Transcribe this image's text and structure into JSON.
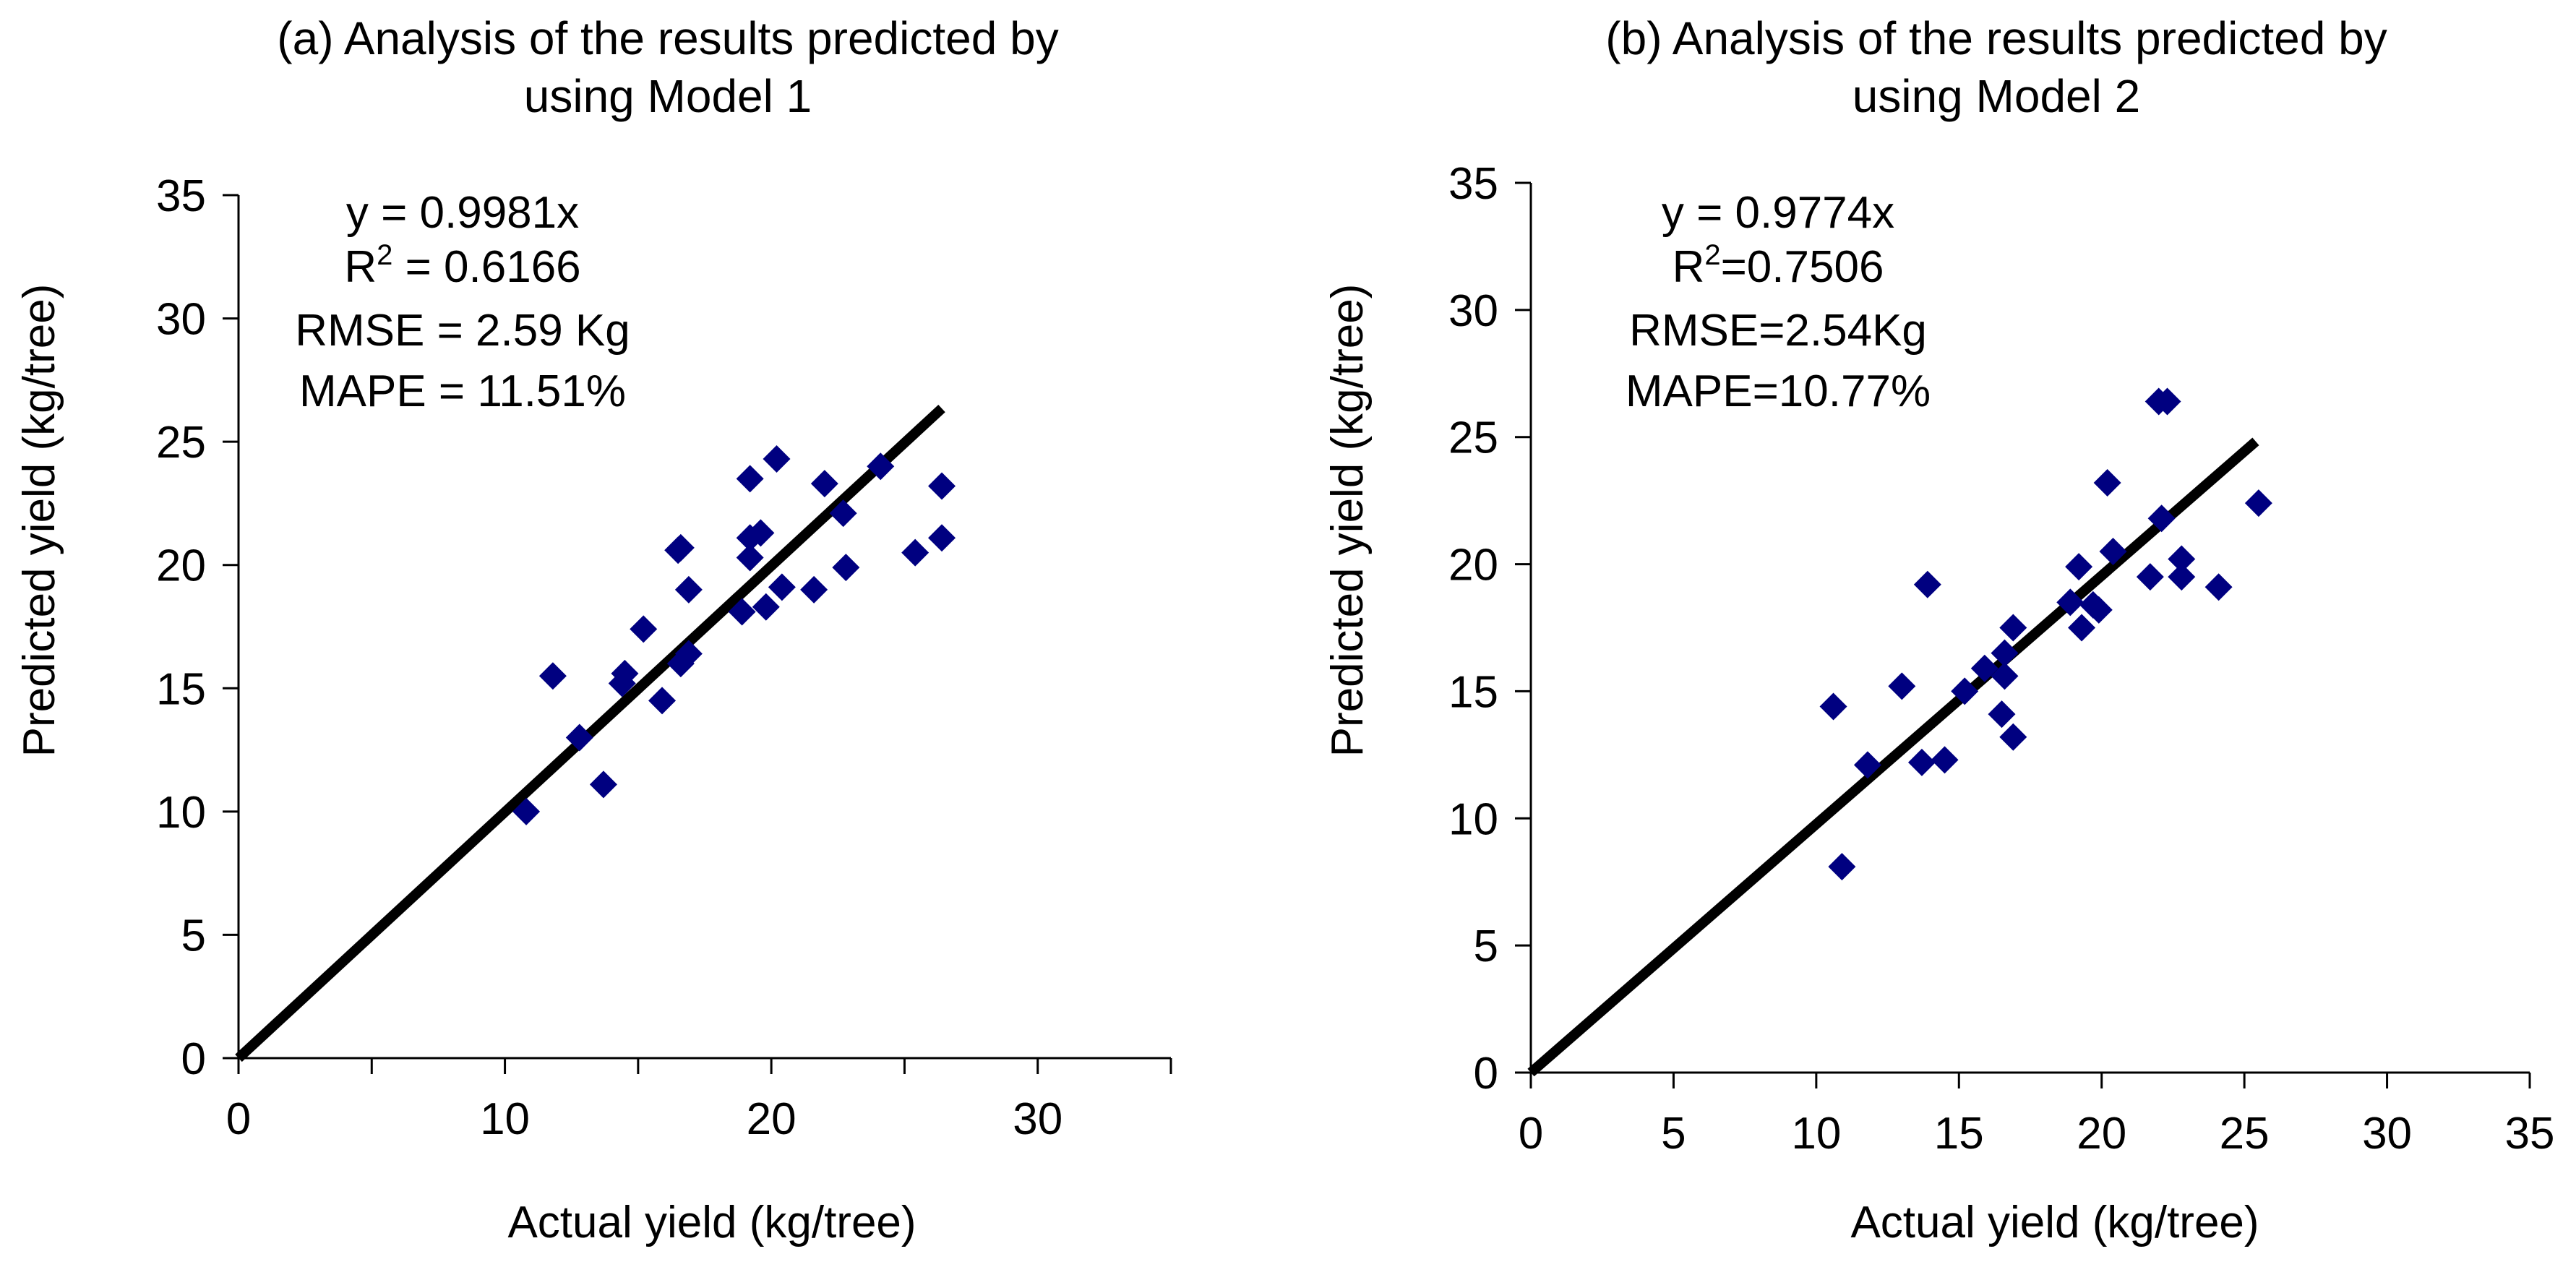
{
  "colors": {
    "point": "#000080",
    "line": "#000000"
  },
  "chart_data": [
    {
      "type": "scatter",
      "panel": "a",
      "title_lines": [
        "(a) Analysis of  the results predicted by",
        "using Model 1"
      ],
      "xlabel": "Actual yield (kg/tree)",
      "ylabel": "Predicted yield (kg/tree)",
      "xlim": [
        0,
        35
      ],
      "ylim": [
        0,
        35
      ],
      "xticks": [
        0,
        10,
        20,
        30
      ],
      "xtick_labels": [
        "0",
        "10",
        "20",
        "30"
      ],
      "yticks": [
        0,
        5,
        10,
        15,
        20,
        25,
        30,
        35
      ],
      "ytick_labels": [
        "0",
        "5",
        "10",
        "15",
        "20",
        "25",
        "30",
        "35"
      ],
      "stats": {
        "equation": "y = 0.9981x",
        "r2_prefix": "R",
        "r2_sup": "2",
        "r2_value": " = 0.6166",
        "rmse": "RMSE = 2.59 Kg",
        "mape": "MAPE = 11.51%"
      },
      "fit": {
        "slope": 0.9981,
        "x_range": [
          0,
          26.4
        ]
      },
      "points": [
        {
          "x": 10.8,
          "y": 10.0
        },
        {
          "x": 11.8,
          "y": 15.5
        },
        {
          "x": 12.8,
          "y": 13.0
        },
        {
          "x": 13.7,
          "y": 11.1
        },
        {
          "x": 14.4,
          "y": 15.2
        },
        {
          "x": 14.5,
          "y": 15.6
        },
        {
          "x": 15.2,
          "y": 17.4
        },
        {
          "x": 15.9,
          "y": 14.5
        },
        {
          "x": 16.5,
          "y": 20.6
        },
        {
          "x": 16.6,
          "y": 20.7
        },
        {
          "x": 16.6,
          "y": 16.0
        },
        {
          "x": 16.9,
          "y": 16.4
        },
        {
          "x": 16.9,
          "y": 19.0
        },
        {
          "x": 18.9,
          "y": 18.1
        },
        {
          "x": 19.2,
          "y": 23.5
        },
        {
          "x": 19.2,
          "y": 21.1
        },
        {
          "x": 19.2,
          "y": 20.3
        },
        {
          "x": 19.6,
          "y": 21.3
        },
        {
          "x": 19.8,
          "y": 18.3
        },
        {
          "x": 20.2,
          "y": 24.3
        },
        {
          "x": 20.4,
          "y": 19.1
        },
        {
          "x": 21.6,
          "y": 19.0
        },
        {
          "x": 22.0,
          "y": 23.3
        },
        {
          "x": 22.7,
          "y": 22.1
        },
        {
          "x": 22.8,
          "y": 19.9
        },
        {
          "x": 24.1,
          "y": 24.0
        },
        {
          "x": 25.4,
          "y": 20.5
        },
        {
          "x": 26.4,
          "y": 23.2
        },
        {
          "x": 26.4,
          "y": 21.1
        }
      ]
    },
    {
      "type": "scatter",
      "panel": "b",
      "title_lines": [
        "(b) Analysis of  the results predicted by",
        "using Model 2"
      ],
      "xlabel": "Actual yield (kg/tree)",
      "ylabel": "Predicted yield (kg/tree)",
      "xlim": [
        0,
        35
      ],
      "ylim": [
        0,
        35
      ],
      "xticks": [
        0,
        5,
        10,
        15,
        20,
        25,
        30,
        35
      ],
      "xtick_labels": [
        "0",
        "5",
        "10",
        "15",
        "20",
        "25",
        "30",
        "35"
      ],
      "yticks": [
        0,
        5,
        10,
        15,
        20,
        25,
        30,
        35
      ],
      "ytick_labels": [
        "0",
        "5",
        "10",
        "15",
        "20",
        "25",
        "30",
        "35"
      ],
      "stats": {
        "equation": "y = 0.9774x",
        "r2_prefix": "R",
        "r2_sup": "2",
        "r2_value": "=0.7506",
        "rmse": "RMSE=2.54Kg",
        "mape": "MAPE=10.77%"
      },
      "fit": {
        "slope": 0.9774,
        "x_range": [
          0,
          25.4
        ]
      },
      "points": [
        {
          "x": 10.6,
          "y": 14.4
        },
        {
          "x": 10.9,
          "y": 8.1
        },
        {
          "x": 11.8,
          "y": 12.1
        },
        {
          "x": 13.0,
          "y": 15.2
        },
        {
          "x": 13.7,
          "y": 12.2
        },
        {
          "x": 13.9,
          "y": 19.2
        },
        {
          "x": 14.5,
          "y": 12.3
        },
        {
          "x": 15.2,
          "y": 15.0
        },
        {
          "x": 15.9,
          "y": 15.9
        },
        {
          "x": 16.5,
          "y": 14.1
        },
        {
          "x": 16.6,
          "y": 15.6
        },
        {
          "x": 16.6,
          "y": 16.5
        },
        {
          "x": 16.9,
          "y": 13.2
        },
        {
          "x": 16.9,
          "y": 17.5
        },
        {
          "x": 18.9,
          "y": 18.5
        },
        {
          "x": 19.2,
          "y": 19.9
        },
        {
          "x": 19.3,
          "y": 17.5
        },
        {
          "x": 19.7,
          "y": 18.4
        },
        {
          "x": 19.9,
          "y": 18.2
        },
        {
          "x": 20.2,
          "y": 23.2
        },
        {
          "x": 20.4,
          "y": 20.5
        },
        {
          "x": 21.7,
          "y": 19.5
        },
        {
          "x": 22.0,
          "y": 26.4
        },
        {
          "x": 22.1,
          "y": 21.8
        },
        {
          "x": 22.3,
          "y": 26.4
        },
        {
          "x": 22.8,
          "y": 19.5
        },
        {
          "x": 22.8,
          "y": 20.2
        },
        {
          "x": 24.1,
          "y": 19.1
        },
        {
          "x": 25.5,
          "y": 22.4
        }
      ]
    }
  ]
}
